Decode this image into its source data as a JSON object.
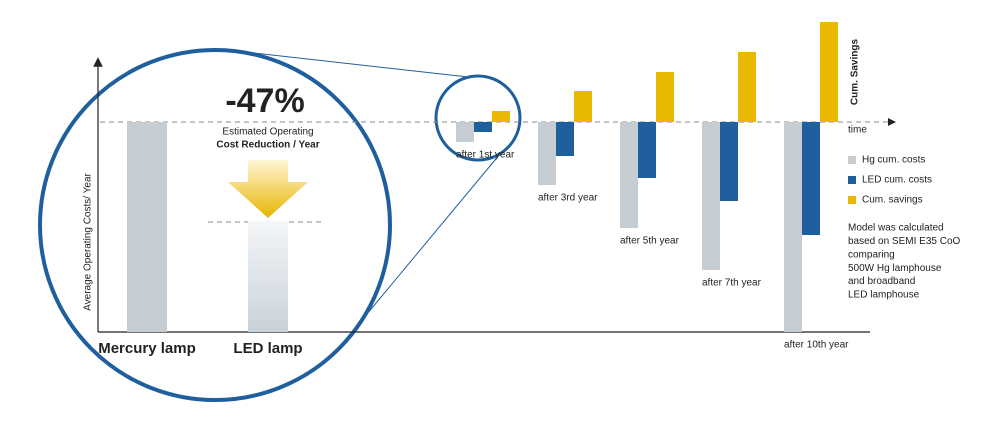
{
  "chart_data": [
    {
      "type": "bar",
      "annotation": "-47%",
      "subtitle": [
        "Estimated Operating",
        "Cost Reduction / Year"
      ],
      "y_label": "Average Operating Costs/ Year",
      "categories": [
        "Mercury lamp",
        "LED lamp"
      ],
      "values": [
        100,
        53
      ],
      "colors": [
        "#c5cdd3",
        "#c9d2da"
      ],
      "arrow_color": "#e8b400",
      "ylim": [
        0,
        100
      ]
    },
    {
      "type": "grouped_bar",
      "x_label": "time",
      "y_label": "Cum. Savings",
      "categories": [
        "after 1st year",
        "after 3rd year",
        "after 5th year",
        "after 7th year",
        "after 10th year"
      ],
      "series": [
        {
          "name": "Hg cum. costs",
          "color": "#c5cdd3",
          "values": [
            -20,
            -63,
            -106,
            -148,
            -210
          ]
        },
        {
          "name": "LED cum. costs",
          "color": "#1f5f9e",
          "values": [
            -10,
            -34,
            -56,
            -79,
            -113
          ]
        },
        {
          "name": "Cum. savings",
          "color": "#e8b900",
          "values": [
            11,
            31,
            50,
            70,
            100
          ]
        }
      ],
      "ylim": [
        -210,
        100
      ],
      "legend": "right",
      "note": [
        "Model was calculated",
        "based on SEMI E35 CoO",
        "comparing",
        "500W Hg lamphouse",
        "and broadband",
        "LED lamphouse"
      ]
    }
  ]
}
